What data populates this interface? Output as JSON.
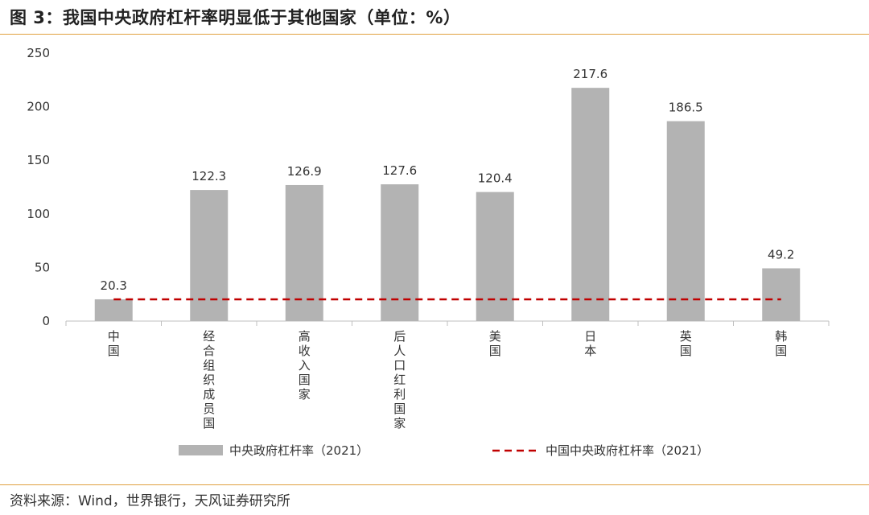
{
  "header": {
    "title": "图 3：我国中央政府杠杆率明显低于其他国家（单位：%）"
  },
  "footer": {
    "source": "资料来源：Wind，世界银行，天风证券研究所"
  },
  "chart_data": {
    "type": "bar",
    "title": "图 3：我国中央政府杠杆率明显低于其他国家（单位：%）",
    "xlabel": "",
    "ylabel": "",
    "categories": [
      "中国",
      "经合组织成员国",
      "高收入国家",
      "后人口红利国家",
      "美国",
      "日本",
      "英国",
      "韩国"
    ],
    "series": [
      {
        "name": "中央政府杠杆率（2021）",
        "type": "bar",
        "color": "#b3b3b3",
        "values": [
          20.3,
          122.3,
          126.9,
          127.6,
          120.4,
          217.6,
          186.5,
          49.2
        ]
      },
      {
        "name": "中国中央政府杠杆率（2021）",
        "type": "line",
        "style": "dashed",
        "color": "#c00000",
        "values": [
          20.3,
          20.3,
          20.3,
          20.3,
          20.3,
          20.3,
          20.3,
          20.3
        ]
      }
    ],
    "data_labels": [
      "20.3",
      "122.3",
      "126.9",
      "127.6",
      "120.4",
      "217.6",
      "186.5",
      "49.2"
    ],
    "yticks": [
      "0",
      "50",
      "100",
      "150",
      "200",
      "250"
    ],
    "ylim": [
      0,
      250
    ],
    "grid": false,
    "legend": "bottom"
  }
}
